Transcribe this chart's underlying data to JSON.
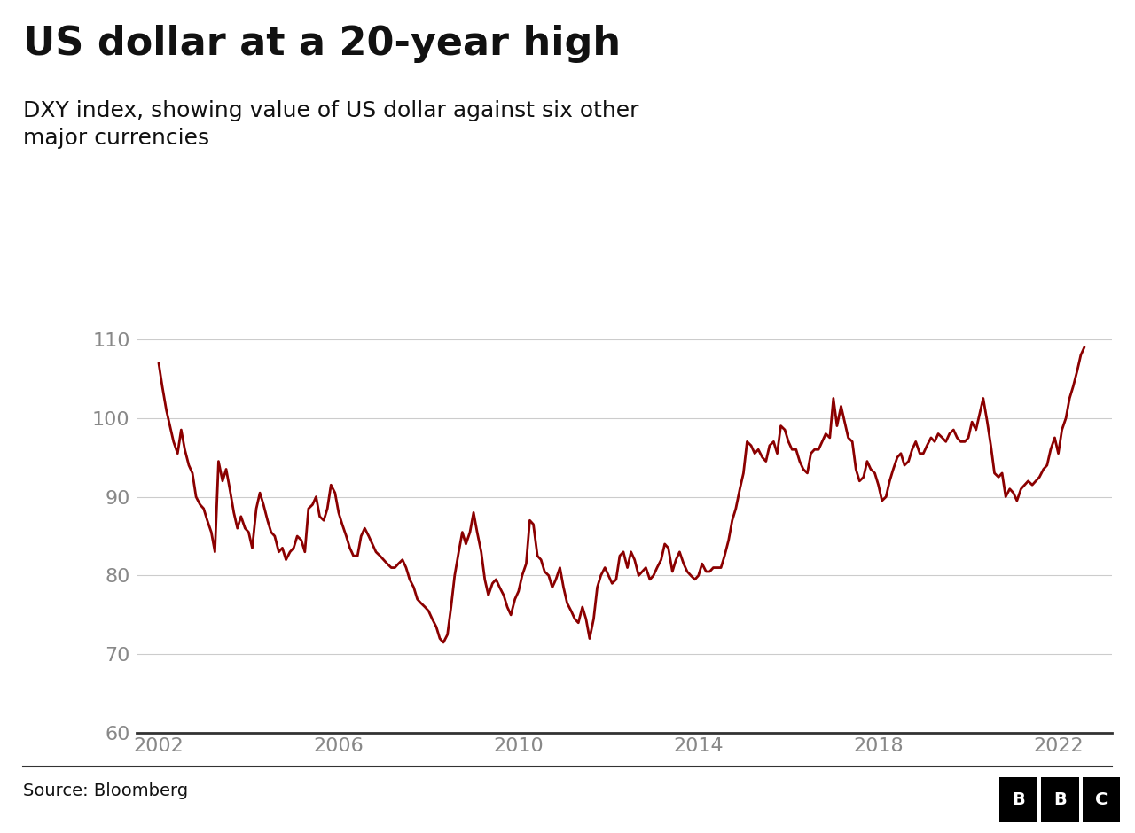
{
  "title": "US dollar at a 20-year high",
  "subtitle": "DXY index, showing value of US dollar against six other\nmajor currencies",
  "source": "Source: Bloomberg",
  "line_color": "#8B0000",
  "background_color": "#ffffff",
  "ylim": [
    60,
    115
  ],
  "yticks": [
    60,
    70,
    80,
    90,
    100,
    110
  ],
  "xticks": [
    2002,
    2006,
    2010,
    2014,
    2018,
    2022
  ],
  "title_fontsize": 32,
  "subtitle_fontsize": 18,
  "tick_fontsize": 16,
  "source_fontsize": 14,
  "dxy_data": {
    "dates": [
      2002.0,
      2002.08,
      2002.17,
      2002.25,
      2002.33,
      2002.42,
      2002.5,
      2002.58,
      2002.67,
      2002.75,
      2002.83,
      2002.92,
      2003.0,
      2003.08,
      2003.17,
      2003.25,
      2003.33,
      2003.42,
      2003.5,
      2003.58,
      2003.67,
      2003.75,
      2003.83,
      2003.92,
      2004.0,
      2004.08,
      2004.17,
      2004.25,
      2004.33,
      2004.42,
      2004.5,
      2004.58,
      2004.67,
      2004.75,
      2004.83,
      2004.92,
      2005.0,
      2005.08,
      2005.17,
      2005.25,
      2005.33,
      2005.42,
      2005.5,
      2005.58,
      2005.67,
      2005.75,
      2005.83,
      2005.92,
      2006.0,
      2006.08,
      2006.17,
      2006.25,
      2006.33,
      2006.42,
      2006.5,
      2006.58,
      2006.67,
      2006.75,
      2006.83,
      2006.92,
      2007.0,
      2007.08,
      2007.17,
      2007.25,
      2007.33,
      2007.42,
      2007.5,
      2007.58,
      2007.67,
      2007.75,
      2007.83,
      2007.92,
      2008.0,
      2008.08,
      2008.17,
      2008.25,
      2008.33,
      2008.42,
      2008.5,
      2008.58,
      2008.67,
      2008.75,
      2008.83,
      2008.92,
      2009.0,
      2009.08,
      2009.17,
      2009.25,
      2009.33,
      2009.42,
      2009.5,
      2009.58,
      2009.67,
      2009.75,
      2009.83,
      2009.92,
      2010.0,
      2010.08,
      2010.17,
      2010.25,
      2010.33,
      2010.42,
      2010.5,
      2010.58,
      2010.67,
      2010.75,
      2010.83,
      2010.92,
      2011.0,
      2011.08,
      2011.17,
      2011.25,
      2011.33,
      2011.42,
      2011.5,
      2011.58,
      2011.67,
      2011.75,
      2011.83,
      2011.92,
      2012.0,
      2012.08,
      2012.17,
      2012.25,
      2012.33,
      2012.42,
      2012.5,
      2012.58,
      2012.67,
      2012.75,
      2012.83,
      2012.92,
      2013.0,
      2013.08,
      2013.17,
      2013.25,
      2013.33,
      2013.42,
      2013.5,
      2013.58,
      2013.67,
      2013.75,
      2013.83,
      2013.92,
      2014.0,
      2014.08,
      2014.17,
      2014.25,
      2014.33,
      2014.42,
      2014.5,
      2014.58,
      2014.67,
      2014.75,
      2014.83,
      2014.92,
      2015.0,
      2015.08,
      2015.17,
      2015.25,
      2015.33,
      2015.42,
      2015.5,
      2015.58,
      2015.67,
      2015.75,
      2015.83,
      2015.92,
      2016.0,
      2016.08,
      2016.17,
      2016.25,
      2016.33,
      2016.42,
      2016.5,
      2016.58,
      2016.67,
      2016.75,
      2016.83,
      2016.92,
      2017.0,
      2017.08,
      2017.17,
      2017.25,
      2017.33,
      2017.42,
      2017.5,
      2017.58,
      2017.67,
      2017.75,
      2017.83,
      2017.92,
      2018.0,
      2018.08,
      2018.17,
      2018.25,
      2018.33,
      2018.42,
      2018.5,
      2018.58,
      2018.67,
      2018.75,
      2018.83,
      2018.92,
      2019.0,
      2019.08,
      2019.17,
      2019.25,
      2019.33,
      2019.42,
      2019.5,
      2019.58,
      2019.67,
      2019.75,
      2019.83,
      2019.92,
      2020.0,
      2020.08,
      2020.17,
      2020.25,
      2020.33,
      2020.42,
      2020.5,
      2020.58,
      2020.67,
      2020.75,
      2020.83,
      2020.92,
      2021.0,
      2021.08,
      2021.17,
      2021.25,
      2021.33,
      2021.42,
      2021.5,
      2021.58,
      2021.67,
      2021.75,
      2021.83,
      2021.92,
      2022.0,
      2022.08,
      2022.17,
      2022.25,
      2022.33,
      2022.42,
      2022.5,
      2022.58
    ],
    "values": [
      107.0,
      104.0,
      101.0,
      99.0,
      97.0,
      95.5,
      98.5,
      96.0,
      94.0,
      93.0,
      90.0,
      89.0,
      88.5,
      87.0,
      85.5,
      83.0,
      94.5,
      92.0,
      93.5,
      91.0,
      88.0,
      86.0,
      87.5,
      86.0,
      85.5,
      83.5,
      88.5,
      90.5,
      89.0,
      87.0,
      85.5,
      85.0,
      83.0,
      83.5,
      82.0,
      83.0,
      83.5,
      85.0,
      84.5,
      83.0,
      88.5,
      89.0,
      90.0,
      87.5,
      87.0,
      88.5,
      91.5,
      90.5,
      88.0,
      86.5,
      85.0,
      83.5,
      82.5,
      82.5,
      85.0,
      86.0,
      85.0,
      84.0,
      83.0,
      82.5,
      82.0,
      81.5,
      81.0,
      81.0,
      81.5,
      82.0,
      81.0,
      79.5,
      78.5,
      77.0,
      76.5,
      76.0,
      75.5,
      74.5,
      73.5,
      72.0,
      71.5,
      72.5,
      76.0,
      80.0,
      83.0,
      85.5,
      84.0,
      85.5,
      88.0,
      85.5,
      83.0,
      79.5,
      77.5,
      79.0,
      79.5,
      78.5,
      77.5,
      76.0,
      75.0,
      77.0,
      78.0,
      80.0,
      81.5,
      87.0,
      86.5,
      82.5,
      82.0,
      80.5,
      80.0,
      78.5,
      79.5,
      81.0,
      78.5,
      76.5,
      75.5,
      74.5,
      74.0,
      76.0,
      74.5,
      72.0,
      74.5,
      78.5,
      80.0,
      81.0,
      80.0,
      79.0,
      79.5,
      82.5,
      83.0,
      81.0,
      83.0,
      82.0,
      80.0,
      80.5,
      81.0,
      79.5,
      80.0,
      81.0,
      82.0,
      84.0,
      83.5,
      80.5,
      82.0,
      83.0,
      81.5,
      80.5,
      80.0,
      79.5,
      80.0,
      81.5,
      80.5,
      80.5,
      81.0,
      81.0,
      81.0,
      82.5,
      84.5,
      87.0,
      88.5,
      91.0,
      93.0,
      97.0,
      96.5,
      95.5,
      96.0,
      95.0,
      94.5,
      96.5,
      97.0,
      95.5,
      99.0,
      98.5,
      97.0,
      96.0,
      96.0,
      94.5,
      93.5,
      93.0,
      95.5,
      96.0,
      96.0,
      97.0,
      98.0,
      97.5,
      102.5,
      99.0,
      101.5,
      99.5,
      97.5,
      97.0,
      93.5,
      92.0,
      92.5,
      94.5,
      93.5,
      93.0,
      91.5,
      89.5,
      90.0,
      92.0,
      93.5,
      95.0,
      95.5,
      94.0,
      94.5,
      96.0,
      97.0,
      95.5,
      95.5,
      96.5,
      97.5,
      97.0,
      98.0,
      97.5,
      97.0,
      98.0,
      98.5,
      97.5,
      97.0,
      97.0,
      97.5,
      99.5,
      98.5,
      100.5,
      102.5,
      99.5,
      96.5,
      93.0,
      92.5,
      93.0,
      90.0,
      91.0,
      90.5,
      89.5,
      91.0,
      91.5,
      92.0,
      91.5,
      92.0,
      92.5,
      93.5,
      94.0,
      96.0,
      97.5,
      95.5,
      98.5,
      100.0,
      102.5,
      104.0,
      106.0,
      108.0,
      109.0
    ]
  }
}
